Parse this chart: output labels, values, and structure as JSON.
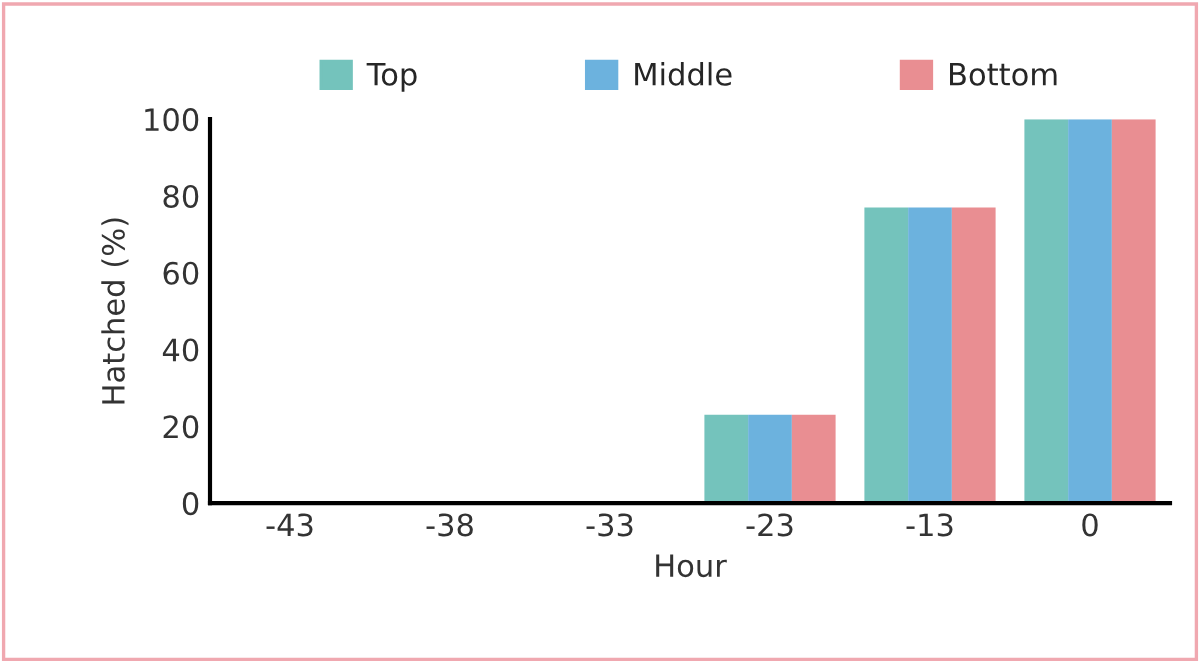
{
  "chart_data": {
    "type": "bar",
    "xlabel": "Hour",
    "ylabel": "Hatched (%)",
    "categories": [
      "-43",
      "-38",
      "-33",
      "-23",
      "-13",
      "0"
    ],
    "series": [
      {
        "name": "Top",
        "color": "#74c3bc",
        "values": [
          0,
          0,
          0,
          23,
          77,
          100
        ]
      },
      {
        "name": "Middle",
        "color": "#6cb2de",
        "values": [
          0,
          0,
          0,
          23,
          77,
          100
        ]
      },
      {
        "name": "Bottom",
        "color": "#e98e92",
        "values": [
          0,
          0,
          0,
          23,
          77,
          100
        ]
      }
    ],
    "ylim": [
      0,
      100
    ],
    "yticks": [
      0,
      20,
      40,
      60,
      80,
      100
    ],
    "grid": false,
    "legend": "top"
  }
}
